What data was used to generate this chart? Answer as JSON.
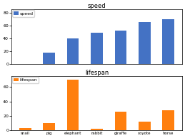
{
  "animals": [
    "snail",
    "pig",
    "elephant",
    "rabbit",
    "giraffe",
    "coyote",
    "horse"
  ],
  "speed": [
    0.3,
    18,
    40,
    49,
    52,
    65,
    70
  ],
  "lifespan": [
    3,
    10,
    70,
    2,
    26,
    12,
    28
  ],
  "speed_color": "#4472C4",
  "lifespan_color": "#FF7F0E",
  "speed_title": "speed",
  "lifespan_title": "lifespan",
  "speed_legend": "speed",
  "lifespan_legend": "lifespan",
  "speed_yticks": [
    0,
    20,
    40,
    60,
    80
  ],
  "lifespan_yticks": [
    0,
    20,
    40,
    60
  ],
  "speed_ylim": [
    0,
    85
  ],
  "lifespan_ylim": [
    0,
    75
  ],
  "figsize": [
    2.59,
    1.94
  ],
  "dpi": 100
}
